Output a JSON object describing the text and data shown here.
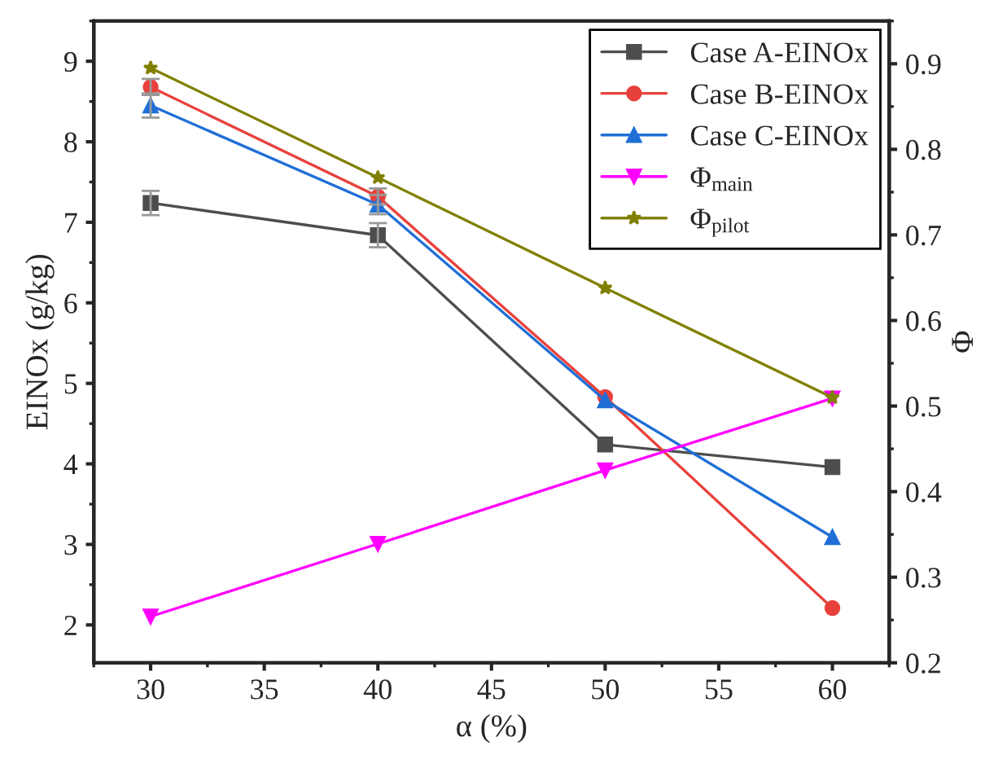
{
  "chart_data": {
    "type": "line",
    "xlabel": "α (%)",
    "ylabel": "EINOx (g/kg)",
    "y2label": "Φ",
    "x": [
      30,
      40,
      50,
      60
    ],
    "series": [
      {
        "name": "Case A-EINOx",
        "color": "#4d4d4d",
        "marker": "square",
        "values": [
          7.24,
          6.84,
          4.24,
          3.96
        ],
        "errors": [
          0.15,
          0.15,
          null,
          null
        ]
      },
      {
        "name": "Case B-EINOx",
        "color": "#e8413c",
        "marker": "circle",
        "values": [
          8.68,
          7.32,
          4.83,
          2.21
        ],
        "errors": [
          0.1,
          0.1,
          null,
          null
        ]
      },
      {
        "name": "Case C-EINOx",
        "color": "#1f6fd6",
        "marker": "triangle",
        "values": [
          8.45,
          7.22,
          4.79,
          3.09
        ],
        "errors": [
          0.15,
          0.12,
          null,
          null
        ]
      },
      {
        "name": "Φ$_{main}$",
        "color": "#ff00ff",
        "marker": "triangle_down",
        "axis": "y2",
        "values": [
          0.254,
          0.339,
          0.425,
          0.509
        ]
      },
      {
        "name": "Φ$_{pilot}$",
        "color": "#808000",
        "marker": "star",
        "axis": "y2",
        "values": [
          0.895,
          0.767,
          0.638,
          0.51
        ]
      }
    ],
    "xlim": [
      27.5,
      62.5
    ],
    "xticks": [
      30,
      35,
      40,
      45,
      50,
      55,
      60
    ],
    "ylim": [
      1.53,
      9.5
    ],
    "yticks": [
      2,
      3,
      4,
      5,
      6,
      7,
      8,
      9
    ],
    "y2lim": [
      0.2,
      0.95
    ],
    "y2ticks": [
      0.2,
      0.3,
      0.4,
      0.5,
      0.6,
      0.7,
      0.8,
      0.9
    ],
    "legend": "top right",
    "grid": false
  }
}
